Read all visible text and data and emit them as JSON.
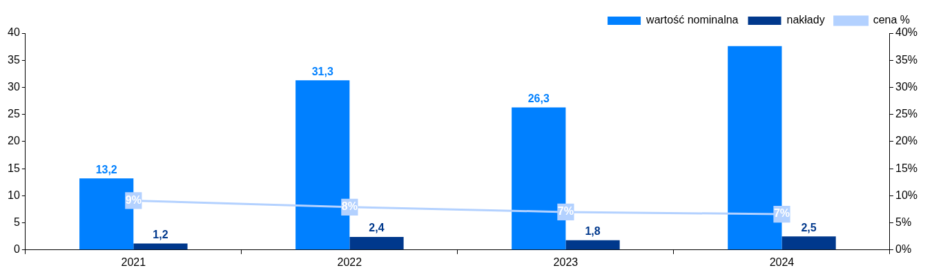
{
  "chart_data": {
    "type": "bar",
    "categories": [
      "2021",
      "2022",
      "2023",
      "2024"
    ],
    "series": [
      {
        "name": "wartość nominalna",
        "color": "#0080ff",
        "values": [
          13.2,
          31.3,
          26.3,
          37.6
        ],
        "value_labels": [
          "13,2",
          "31,3",
          "26,3",
          null
        ]
      },
      {
        "name": "nakłady",
        "color": "#00388c",
        "values": [
          1.2,
          2.4,
          1.8,
          2.5
        ],
        "value_labels": [
          "1,2",
          "2,4",
          "1,8",
          "2,5"
        ]
      },
      {
        "name": "cena %",
        "type": "line",
        "axis": "y2",
        "color": "#b3d1ff",
        "marker": "square",
        "line_style": "solid",
        "values": [
          9.1,
          7.9,
          7.0,
          6.6
        ],
        "value_labels": [
          "9%",
          "8%",
          "7%",
          "7%"
        ]
      }
    ],
    "ylim": [
      0,
      40
    ],
    "yticks": [
      0,
      5,
      10,
      15,
      20,
      25,
      30,
      35,
      40
    ],
    "y2lim": [
      0,
      40
    ],
    "y2ticks": [
      {
        "value": 0,
        "label": "0%"
      },
      {
        "value": 5,
        "label": "5%"
      },
      {
        "value": 10,
        "label": "10%"
      },
      {
        "value": 15,
        "label": "15%"
      },
      {
        "value": 20,
        "label": "20%"
      },
      {
        "value": 25,
        "label": "25%"
      },
      {
        "value": 30,
        "label": "30%"
      },
      {
        "value": 35,
        "label": "35%"
      },
      {
        "value": 40,
        "label": "40%"
      }
    ],
    "grid": false,
    "legend": "top right"
  }
}
